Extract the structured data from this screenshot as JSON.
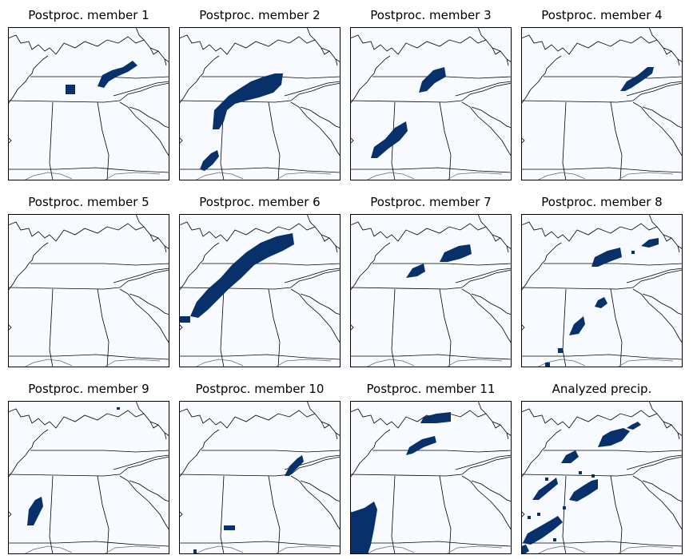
{
  "figure": {
    "panels": [
      {
        "title": "Postproc. member 1"
      },
      {
        "title": "Postproc. member 2"
      },
      {
        "title": "Postproc. member 3"
      },
      {
        "title": "Postproc. member 4"
      },
      {
        "title": "Postproc. member 5"
      },
      {
        "title": "Postproc. member 6"
      },
      {
        "title": "Postproc. member 7"
      },
      {
        "title": "Postproc. member 8"
      },
      {
        "title": "Postproc. member 9"
      },
      {
        "title": "Postproc. member 10"
      },
      {
        "title": "Postproc. member 11"
      },
      {
        "title": "Analyzed precip."
      }
    ],
    "colors": {
      "background": "#f7fbff",
      "precip": "#08306b",
      "borders": "#000000",
      "coast": "#666666"
    }
  }
}
